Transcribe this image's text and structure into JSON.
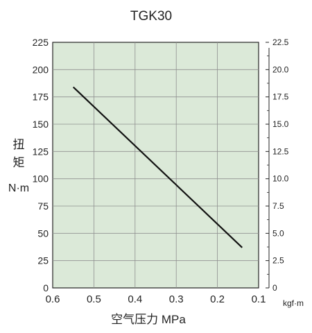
{
  "chart_data": {
    "type": "line",
    "title": "TGK30",
    "xlabel": "空气压力 MPa",
    "ylabel_chars": [
      "扭",
      "矩"
    ],
    "yunit": "N·m",
    "y2unit": "kgf·m",
    "xlim": [
      0.6,
      0.1
    ],
    "ylim": [
      0,
      225
    ],
    "y2lim": [
      0,
      22.5
    ],
    "x_ticks": [
      "0.6",
      "0.5",
      "0.4",
      "0.3",
      "0.2",
      "0.1"
    ],
    "x_tick_values": [
      0.6,
      0.5,
      0.4,
      0.3,
      0.2,
      0.1
    ],
    "y_ticks": [
      "0",
      "25",
      "50",
      "75",
      "100",
      "125",
      "150",
      "175",
      "200",
      "225"
    ],
    "y_tick_values": [
      0,
      25,
      50,
      75,
      100,
      125,
      150,
      175,
      200,
      225
    ],
    "y2_ticks": [
      "0",
      "2.5",
      "5.0",
      "7.5",
      "10.0",
      "12.5",
      "15.0",
      "17.5",
      "20.0",
      "22.5"
    ],
    "y2_tick_values": [
      0,
      2.5,
      5,
      7.5,
      10,
      12.5,
      15,
      17.5,
      20,
      22.5
    ],
    "grid": true,
    "colors": {
      "plot_bg": "#dbe9d8",
      "grid": "#8f8f8f",
      "line": "#111111"
    },
    "series": [
      {
        "x": [
          0.55,
          0.14
        ],
        "y": [
          184,
          37
        ]
      }
    ]
  }
}
